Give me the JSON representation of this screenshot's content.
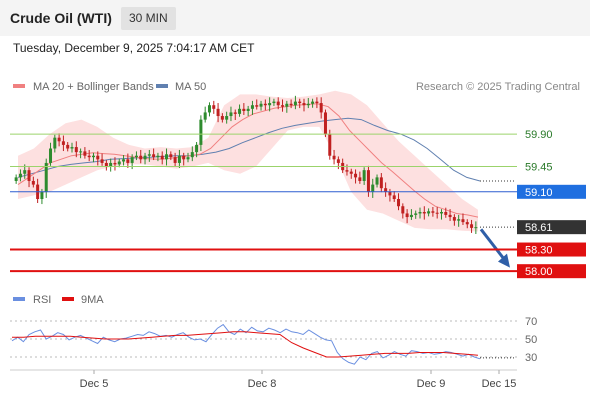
{
  "header": {
    "instrument": "Crude Oil (WTI)",
    "timeframe": "30 MIN"
  },
  "timestamp": "Tuesday, December 9, 2025 7:04:17 AM CET",
  "legend": {
    "ma20_bb": "MA 20 + Bollinger Bands",
    "ma50": "MA 50",
    "copyright": "Research © 2025 Trading Central",
    "rsi": "RSI",
    "ma9": "9MA"
  },
  "colors": {
    "ma20": "#f08080",
    "bollinger_fill": "#fde0e0",
    "ma50": "#6080b0",
    "up_candle": "#2e8b2e",
    "down_candle": "#c02020",
    "green_level": "#9bd36b",
    "blue_level": "#2f5fd0",
    "red_level": "#e01010",
    "price_tag": "#333333",
    "rsi": "#6a8fe0",
    "rsi_ma": "#e01010",
    "arrow": "#2f5fa8"
  },
  "chart_data": [
    {
      "type": "candlestick",
      "title": "Crude Oil (WTI) 30 MIN",
      "x_ticks": [
        "Dec 5",
        "Dec 8",
        "Dec 9",
        "Dec 15"
      ],
      "ylim": [
        57.85,
        60.4
      ],
      "levels": [
        {
          "value": 59.9,
          "label": "59.90",
          "kind": "resistance-green"
        },
        {
          "value": 59.45,
          "label": "59.45",
          "kind": "resistance-green"
        },
        {
          "value": 59.1,
          "label": "59.10",
          "kind": "pivot-blue"
        },
        {
          "value": 58.3,
          "label": "58.30",
          "kind": "support-red"
        },
        {
          "value": 58.0,
          "label": "58.00",
          "kind": "support-red"
        }
      ],
      "last_price": {
        "value": 58.61,
        "label": "58.61"
      },
      "closes": [
        59.3,
        59.35,
        59.4,
        59.25,
        59.2,
        59.0,
        59.1,
        59.5,
        59.7,
        59.85,
        59.8,
        59.75,
        59.7,
        59.72,
        59.65,
        59.66,
        59.6,
        59.58,
        59.6,
        59.55,
        59.5,
        59.45,
        59.5,
        59.48,
        59.52,
        59.55,
        59.5,
        59.58,
        59.6,
        59.55,
        59.6,
        59.62,
        59.58,
        59.6,
        59.55,
        59.62,
        59.58,
        59.5,
        59.6,
        59.55,
        59.58,
        59.65,
        59.75,
        60.1,
        60.2,
        60.3,
        60.25,
        60.15,
        60.1,
        60.15,
        60.2,
        60.18,
        60.25,
        60.22,
        60.25,
        60.3,
        60.28,
        60.32,
        60.3,
        60.33,
        60.35,
        60.3,
        60.28,
        60.32,
        60.3,
        60.35,
        60.33,
        60.3,
        60.32,
        60.35,
        60.33,
        60.2,
        59.9,
        59.6,
        59.55,
        59.5,
        59.4,
        59.38,
        59.35,
        59.3,
        59.25,
        59.4,
        59.1,
        59.2,
        59.3,
        59.15,
        59.1,
        59.05,
        59.0,
        58.9,
        58.8,
        58.75,
        58.78,
        58.8,
        58.82,
        58.8,
        58.83,
        58.81,
        58.8,
        58.82,
        58.78,
        58.75,
        58.7,
        58.72,
        58.68,
        58.65,
        58.6,
        58.61
      ],
      "ma20": [
        59.2,
        59.3,
        59.4,
        59.5,
        59.55,
        59.6,
        59.62,
        59.64,
        59.63,
        59.62,
        59.6,
        59.58,
        59.56,
        59.55,
        59.56,
        59.58,
        59.6,
        59.62,
        59.7,
        59.85,
        60.0,
        60.1,
        60.18,
        60.22,
        60.26,
        60.28,
        60.3,
        60.31,
        60.32,
        60.28,
        60.15,
        59.95,
        59.8,
        59.65,
        59.5,
        59.38,
        59.25,
        59.12,
        59.0,
        58.9,
        58.85,
        58.8,
        58.78,
        58.75
      ],
      "ma50": [
        59.3,
        59.35,
        59.4,
        59.45,
        59.48,
        59.5,
        59.52,
        59.55,
        59.56,
        59.57,
        59.58,
        59.59,
        59.6,
        59.6,
        59.62,
        59.65,
        59.7,
        59.78,
        59.85,
        59.92,
        59.98,
        60.02,
        60.05,
        60.08,
        60.1,
        60.12,
        60.1,
        60.02,
        59.95,
        59.9,
        59.82,
        59.7,
        59.55,
        59.4,
        59.3,
        59.25
      ],
      "bollinger_upper": [
        59.6,
        59.7,
        59.9,
        60.05,
        60.1,
        60.0,
        59.85,
        59.75,
        59.7,
        59.72,
        59.7,
        59.72,
        59.85,
        60.3,
        60.45,
        60.45,
        60.42,
        60.4,
        60.42,
        60.45,
        60.5,
        60.45,
        60.3,
        60.05,
        59.8,
        59.6,
        59.4,
        59.2,
        59.0,
        58.85
      ],
      "bollinger_lower": [
        59.0,
        59.05,
        59.1,
        59.2,
        59.3,
        59.4,
        59.45,
        59.48,
        59.48,
        59.45,
        59.42,
        59.45,
        59.5,
        59.4,
        59.35,
        59.45,
        59.7,
        59.95,
        60.0,
        60.0,
        59.6,
        59.1,
        58.85,
        58.8,
        58.7,
        58.6,
        58.58,
        58.58,
        58.56,
        58.55
      ]
    },
    {
      "type": "line",
      "title": "RSI",
      "ylim": [
        20,
        80
      ],
      "y_ticks": [
        70,
        50,
        30
      ],
      "series": [
        {
          "name": "RSI",
          "values": [
            48,
            52,
            47,
            55,
            58,
            60,
            50,
            53,
            57,
            55,
            49,
            52,
            54,
            51,
            48,
            45,
            52,
            49,
            47,
            50,
            51,
            53,
            55,
            54,
            58,
            56,
            53,
            54,
            52,
            55,
            57,
            52,
            49,
            50,
            47,
            55,
            62,
            66,
            58,
            55,
            61,
            57,
            63,
            59,
            58,
            62,
            60,
            57,
            61,
            58,
            57,
            55,
            60,
            56,
            52,
            49,
            48,
            35,
            28,
            24,
            22,
            30,
            27,
            34,
            36,
            29,
            32,
            36,
            33,
            31,
            37,
            36,
            34,
            35,
            33,
            34,
            36,
            35,
            33,
            31,
            33,
            30,
            28
          ]
        },
        {
          "name": "9MA",
          "values": [
            52,
            52,
            53,
            53,
            53,
            53,
            52,
            51,
            50,
            50,
            50,
            51,
            52,
            53,
            54,
            54,
            55,
            56,
            57,
            58,
            58,
            57,
            56,
            55,
            46,
            40,
            35,
            30,
            30,
            31,
            32,
            33,
            34,
            34,
            34,
            35,
            35,
            35,
            34,
            33,
            32
          ]
        }
      ]
    }
  ]
}
